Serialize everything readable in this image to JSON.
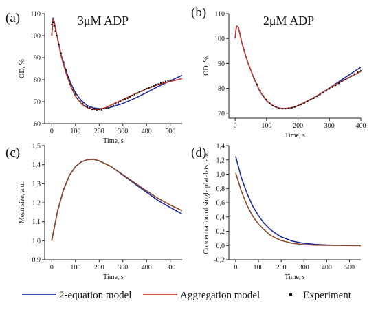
{
  "legend": {
    "items": [
      {
        "label": "2-equation model",
        "color": "#1f2a9c",
        "kind": "line"
      },
      {
        "label": "Aggregation model",
        "color": "#c0392b",
        "kind": "line"
      },
      {
        "label": "Experiment",
        "color": "#111111",
        "kind": "marker"
      }
    ]
  },
  "chart_data": [
    {
      "panel": "(a)",
      "title": "3μM ADP",
      "type": "line",
      "xlabel": "Time, s",
      "ylabel": "OD, %",
      "xlim": [
        -30,
        550
      ],
      "ylim": [
        60,
        110
      ],
      "xticks": [
        0,
        100,
        200,
        300,
        400,
        500
      ],
      "yticks": [
        60,
        70,
        80,
        90,
        100,
        110
      ],
      "tick_labels_x": [
        "0",
        "100",
        "200",
        "300",
        "400",
        "500"
      ],
      "tick_labels_y": [
        "60",
        "70",
        "80",
        "90",
        "100",
        "110"
      ],
      "series": [
        {
          "name": "2-equation model",
          "color": "#1f2a9c",
          "x": [
            0,
            5,
            10,
            20,
            40,
            60,
            80,
            100,
            125,
            150,
            175,
            200,
            225,
            250,
            300,
            350,
            400,
            450,
            500,
            550
          ],
          "y": [
            100,
            108,
            106.5,
            101,
            91,
            84,
            78.5,
            74,
            70.5,
            68.2,
            67.2,
            66.8,
            67,
            67.5,
            69.2,
            71.5,
            74.2,
            77,
            79.5,
            82
          ]
        },
        {
          "name": "Aggregation model",
          "color": "#c0392b",
          "x": [
            0,
            5,
            10,
            20,
            40,
            60,
            80,
            100,
            125,
            150,
            175,
            200,
            225,
            250,
            300,
            350,
            400,
            450,
            500,
            550
          ],
          "y": [
            100,
            107.5,
            106,
            101,
            90.5,
            83,
            77,
            72.5,
            69,
            67.2,
            66.5,
            66.5,
            67.2,
            68.5,
            71,
            73.5,
            75.8,
            77.8,
            79.2,
            80.5
          ]
        },
        {
          "name": "Experiment",
          "color": "#111111",
          "markers": true,
          "x": [
            0,
            5,
            10,
            15,
            20,
            30,
            40,
            50,
            60,
            70,
            80,
            90,
            100,
            110,
            120,
            130,
            140,
            150,
            160,
            170,
            180,
            190,
            200,
            210,
            220,
            230,
            240,
            250,
            260,
            270,
            280,
            290,
            300,
            310,
            320,
            330,
            340,
            350,
            360,
            370,
            380,
            390,
            400,
            410,
            420,
            430,
            440,
            450,
            460,
            470,
            480,
            490,
            500
          ],
          "y": [
            105,
            106,
            104.5,
            102,
            100,
            96,
            92,
            88,
            84.5,
            81,
            78,
            75.5,
            73.5,
            71.5,
            70,
            69.2,
            68,
            67.5,
            67.2,
            66.5,
            66.8,
            66.2,
            66.5,
            66.3,
            66.8,
            67,
            67.2,
            68,
            68.3,
            69,
            69.5,
            70,
            70.8,
            71.2,
            71.5,
            72.2,
            72.8,
            73.2,
            73.8,
            74.5,
            74.8,
            75.5,
            76,
            76.3,
            76.8,
            77.2,
            77.8,
            78,
            78.5,
            78.8,
            79.2,
            79.5,
            79.8
          ]
        }
      ]
    },
    {
      "panel": "(b)",
      "title": "2μM ADP",
      "type": "line",
      "xlabel": "Time, s",
      "ylabel": "OD, %",
      "xlim": [
        -20,
        400
      ],
      "ylim": [
        68,
        110
      ],
      "xticks": [
        0,
        100,
        200,
        300,
        400
      ],
      "yticks": [
        70,
        80,
        90,
        100,
        110
      ],
      "tick_labels_x": [
        "0",
        "100",
        "200",
        "300",
        "400"
      ],
      "tick_labels_y": [
        "70",
        "80",
        "90",
        "100",
        "110"
      ],
      "series": [
        {
          "name": "2-equation model",
          "color": "#1f2a9c",
          "x": [
            0,
            3,
            6,
            10,
            15,
            20,
            30,
            40,
            60,
            80,
            100,
            120,
            140,
            160,
            180,
            200,
            240,
            280,
            320,
            360,
            400
          ],
          "y": [
            100,
            104,
            105,
            104.5,
            102,
            99,
            94.5,
            90.5,
            84,
            78.5,
            75,
            73,
            72,
            71.8,
            72.2,
            73,
            75.5,
            78.5,
            81.8,
            85.2,
            88.5
          ]
        },
        {
          "name": "Aggregation model",
          "color": "#c0392b",
          "x": [
            0,
            3,
            6,
            10,
            15,
            20,
            30,
            40,
            60,
            80,
            100,
            120,
            140,
            160,
            180,
            200,
            240,
            280,
            320,
            360,
            400
          ],
          "y": [
            100,
            104,
            105,
            104.5,
            102,
            99,
            94.5,
            90.5,
            84,
            78.5,
            75,
            73,
            72,
            71.8,
            72.2,
            73,
            75.5,
            78.5,
            81.5,
            84.2,
            86.8
          ]
        },
        {
          "name": "Experiment",
          "color": "#111111",
          "markers": true,
          "x": [
            60,
            70,
            80,
            90,
            100,
            110,
            120,
            130,
            140,
            150,
            160,
            170,
            180,
            190,
            200,
            210,
            220,
            230,
            240,
            250,
            260,
            270,
            280,
            290,
            300,
            310,
            320,
            330,
            340,
            350,
            360,
            370,
            380,
            390,
            400
          ],
          "y": [
            84,
            81.5,
            79,
            77,
            75.5,
            74,
            73,
            72.5,
            72,
            71.8,
            71.8,
            72,
            72.2,
            72.5,
            73,
            73.5,
            74,
            74.8,
            75.5,
            76,
            76.8,
            77.5,
            78.2,
            79,
            79.8,
            80.5,
            81.2,
            82,
            82.8,
            83.5,
            84.2,
            85,
            85.8,
            86.5,
            87
          ]
        }
      ]
    },
    {
      "panel": "(c)",
      "type": "line",
      "xlabel": "Time, s",
      "ylabel": "Mean size, a.u.",
      "xlim": [
        -30,
        550
      ],
      "ylim": [
        0.9,
        1.5
      ],
      "xticks": [
        0,
        100,
        200,
        300,
        400,
        500
      ],
      "yticks": [
        0.9,
        1.0,
        1.1,
        1.2,
        1.3,
        1.4,
        1.5
      ],
      "tick_labels_x": [
        "0",
        "100",
        "200",
        "300",
        "400",
        "500"
      ],
      "tick_labels_y": [
        "0,9",
        "1,0",
        "1,1",
        "1,2",
        "1,3",
        "1,4",
        "1,5"
      ],
      "series": [
        {
          "name": "2-equation model",
          "color": "#1f2a9c",
          "x": [
            0,
            25,
            50,
            75,
            100,
            125,
            150,
            175,
            200,
            250,
            300,
            350,
            400,
            450,
            500,
            550
          ],
          "y": [
            1.0,
            1.16,
            1.27,
            1.345,
            1.39,
            1.415,
            1.426,
            1.428,
            1.42,
            1.39,
            1.345,
            1.3,
            1.255,
            1.21,
            1.175,
            1.14
          ]
        },
        {
          "name": "Aggregation model",
          "color": "#8a4a2a",
          "x": [
            0,
            25,
            50,
            75,
            100,
            125,
            150,
            175,
            200,
            250,
            300,
            350,
            400,
            450,
            500,
            550
          ],
          "y": [
            1.0,
            1.16,
            1.27,
            1.345,
            1.39,
            1.415,
            1.426,
            1.428,
            1.42,
            1.39,
            1.348,
            1.305,
            1.262,
            1.222,
            1.188,
            1.158
          ]
        }
      ]
    },
    {
      "panel": "(d)",
      "type": "line",
      "xlabel": "Time, s",
      "ylabel": "Concentration of single platelets, a.u.",
      "xlim": [
        -30,
        550
      ],
      "ylim": [
        -0.2,
        1.4
      ],
      "xticks": [
        0,
        100,
        200,
        300,
        400,
        500
      ],
      "yticks": [
        -0.2,
        0.0,
        0.2,
        0.4,
        0.6,
        0.8,
        1.0,
        1.2,
        1.4
      ],
      "tick_labels_x": [
        "0",
        "100",
        "200",
        "300",
        "400",
        "500"
      ],
      "tick_labels_y": [
        "-0,2",
        "0,0",
        "0,2",
        "0,4",
        "0,6",
        "0,8",
        "1,0",
        "1,2",
        "1,4"
      ],
      "series": [
        {
          "name": "2-equation model",
          "color": "#1f2a9c",
          "x": [
            0,
            25,
            50,
            75,
            100,
            125,
            150,
            175,
            200,
            250,
            300,
            350,
            400,
            450,
            500,
            550
          ],
          "y": [
            1.25,
            0.95,
            0.73,
            0.55,
            0.42,
            0.31,
            0.23,
            0.17,
            0.12,
            0.06,
            0.03,
            0.015,
            0.006,
            0.003,
            0.001,
            0.0
          ]
        },
        {
          "name": "Aggregation model",
          "color": "#8a4a2a",
          "x": [
            0,
            25,
            50,
            75,
            100,
            125,
            150,
            175,
            200,
            250,
            300,
            350,
            400,
            450,
            500,
            550
          ],
          "y": [
            1.02,
            0.76,
            0.56,
            0.41,
            0.3,
            0.22,
            0.15,
            0.105,
            0.07,
            0.03,
            0.012,
            0.005,
            0.002,
            0.001,
            0.0,
            0.0
          ]
        }
      ]
    }
  ]
}
